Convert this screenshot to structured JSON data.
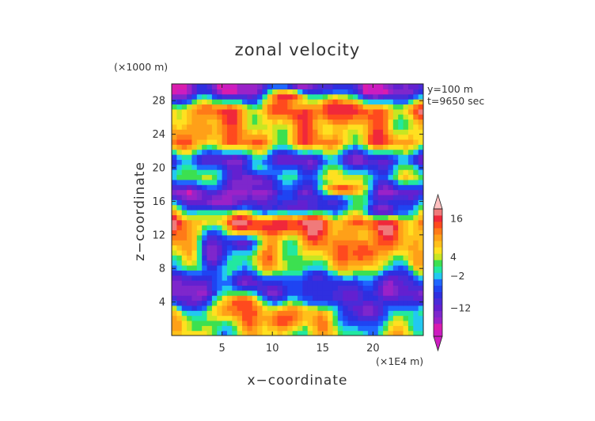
{
  "chart_data": {
    "type": "heatmap",
    "title": "zonal velocity",
    "xlabel": "x−coordinate",
    "ylabel": "z−coordinate",
    "x_unit": "(×1E4 m)",
    "y_unit": "(×1000 m)",
    "annotations": [
      "y=100 m",
      "t=9650 sec"
    ],
    "xlim": [
      0,
      25
    ],
    "ylim": [
      0,
      30
    ],
    "x_ticks": [
      5,
      10,
      15,
      20
    ],
    "y_ticks": [
      4,
      8,
      12,
      16,
      20,
      24,
      28
    ],
    "colorbar": {
      "levels": [
        -20,
        -18,
        -16,
        -14,
        -12,
        -10,
        -8,
        -6,
        -4,
        -2,
        0,
        2,
        4,
        6,
        8,
        10,
        12,
        14,
        16,
        18,
        20
      ],
      "tick_labels": [
        {
          "value": 16,
          "label": "16"
        },
        {
          "value": 4,
          "label": "4"
        },
        {
          "value": -2,
          "label": "−2"
        },
        {
          "value": -12,
          "label": "−12"
        }
      ],
      "colors": [
        "#cc1cc0",
        "#d91cae",
        "#9a22c8",
        "#7e27cc",
        "#6320d0",
        "#4a2bd8",
        "#2f2fe0",
        "#1f44f2",
        "#1f66ff",
        "#22c8f0",
        "#22e8a0",
        "#3ce050",
        "#c8e622",
        "#ffe020",
        "#ffc01a",
        "#ffa018",
        "#ff7a18",
        "#ff4a1e",
        "#f0283a",
        "#f07a7a",
        "#ffc0c0"
      ],
      "extend": "both"
    },
    "bands": [
      {
        "z": 29.0,
        "v": -14
      },
      {
        "z": 27.0,
        "v": 13
      },
      {
        "z": 25.0,
        "v": 8
      },
      {
        "z": 23.0,
        "v": 11
      },
      {
        "z": 21.0,
        "v": -10
      },
      {
        "z": 19.0,
        "v": 3
      },
      {
        "z": 17.0,
        "v": -12
      },
      {
        "z": 15.0,
        "v": 7
      },
      {
        "z": 13.5,
        "v": 15
      },
      {
        "z": 12.0,
        "v": 11
      },
      {
        "z": 10.0,
        "v": 8
      },
      {
        "z": 8.0,
        "v": 5
      },
      {
        "z": 6.5,
        "v": -8
      },
      {
        "z": 5.0,
        "v": -12
      },
      {
        "z": 3.0,
        "v": 9
      },
      {
        "z": 1.0,
        "v": 5
      }
    ],
    "blobs": [
      {
        "x": 3.0,
        "z": 24.5,
        "rx": 2.0,
        "rz": 1.8,
        "v": 12
      },
      {
        "x": 11.5,
        "z": 28.5,
        "rx": 2.2,
        "rz": 1.0,
        "v": 18
      },
      {
        "x": 16.0,
        "z": 27.0,
        "rx": 1.6,
        "rz": 2.0,
        "v": 18
      },
      {
        "x": 8.0,
        "z": 18.5,
        "rx": 3.0,
        "rz": 1.2,
        "v": -14
      },
      {
        "x": 5.0,
        "z": 16.0,
        "rx": 3.0,
        "rz": 1.2,
        "v": -16
      },
      {
        "x": 12.5,
        "z": 15.5,
        "rx": 4.0,
        "rz": 1.0,
        "v": -12
      },
      {
        "x": 21.0,
        "z": 15.0,
        "rx": 2.0,
        "rz": 1.0,
        "v": -14
      },
      {
        "x": 17.0,
        "z": 17.5,
        "rx": 2.5,
        "rz": 0.9,
        "v": 16
      },
      {
        "x": 10.0,
        "z": 13.0,
        "rx": 3.0,
        "rz": 0.9,
        "v": 18
      },
      {
        "x": 4.0,
        "z": 10.0,
        "rx": 1.5,
        "rz": 3.0,
        "v": -14
      },
      {
        "x": 7.0,
        "z": 11.0,
        "rx": 1.8,
        "rz": 1.2,
        "v": -12
      },
      {
        "x": 19.0,
        "z": 10.0,
        "rx": 2.0,
        "rz": 2.0,
        "v": 16
      },
      {
        "x": 14.5,
        "z": 5.5,
        "rx": 3.2,
        "rz": 2.0,
        "v": -6
      },
      {
        "x": 19.5,
        "z": 3.0,
        "rx": 2.5,
        "rz": 2.0,
        "v": -14
      },
      {
        "x": 7.0,
        "z": 4.0,
        "rx": 2.0,
        "rz": 1.5,
        "v": 16
      },
      {
        "x": 1.5,
        "z": 5.0,
        "rx": 1.5,
        "rz": 2.5,
        "v": -12
      },
      {
        "x": 23.0,
        "z": 6.0,
        "rx": 1.2,
        "rz": 3.0,
        "v": -10
      },
      {
        "x": 11.0,
        "z": 2.0,
        "rx": 2.0,
        "rz": 1.5,
        "v": 16
      }
    ]
  }
}
